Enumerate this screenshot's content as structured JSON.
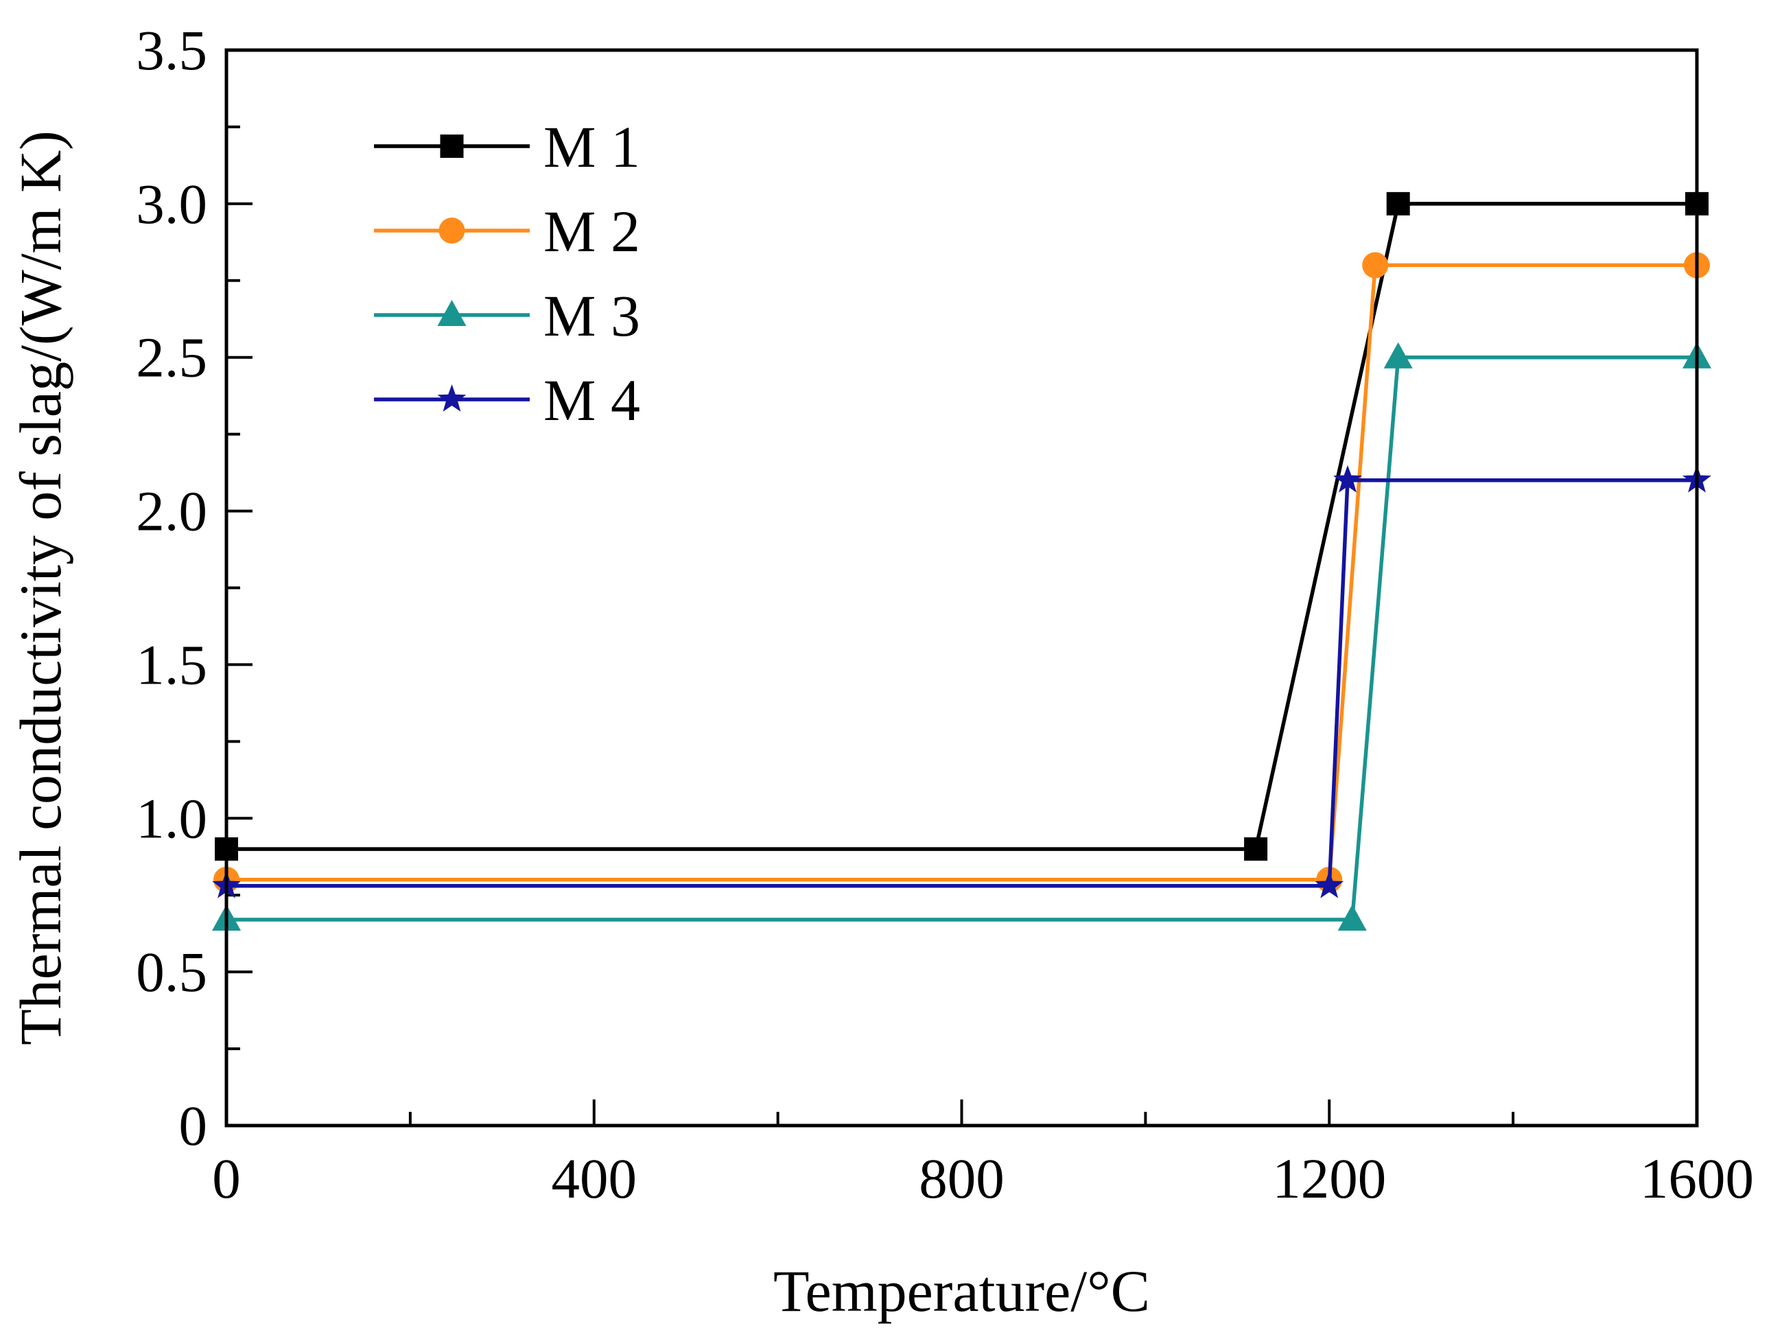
{
  "chart_data": {
    "type": "line",
    "title": "",
    "xlabel": "Temperature/°C",
    "ylabel": "Thermal conductivity of slag/(W/m K)",
    "xlim": [
      0,
      1600
    ],
    "ylim": [
      0,
      3.5
    ],
    "xticks": [
      0,
      400,
      800,
      1200,
      1600
    ],
    "xtick_labels": [
      "0",
      "400",
      "800",
      "1200",
      "1600"
    ],
    "x_minor_step": 200,
    "yticks": [
      0,
      0.5,
      1.0,
      1.5,
      2.0,
      2.5,
      3.0,
      3.5
    ],
    "ytick_labels": [
      "0",
      "0.5",
      "1.0",
      "1.5",
      "2.0",
      "2.5",
      "3.0",
      "3.5"
    ],
    "y_minor_step": 0.25,
    "grid": false,
    "legend_position": "top-left",
    "series": [
      {
        "name": "M 1",
        "color": "#000000",
        "marker": "square",
        "x": [
          0,
          1120,
          1275,
          1600
        ],
        "y": [
          0.9,
          0.9,
          3.0,
          3.0
        ]
      },
      {
        "name": "M 2",
        "color": "#ff8c1a",
        "marker": "circle",
        "x": [
          0,
          1200,
          1250,
          1600
        ],
        "y": [
          0.8,
          0.8,
          2.8,
          2.8
        ]
      },
      {
        "name": "M 3",
        "color": "#1a9490",
        "marker": "triangle",
        "x": [
          0,
          1225,
          1275,
          1600
        ],
        "y": [
          0.67,
          0.67,
          2.5,
          2.5
        ]
      },
      {
        "name": "M 4",
        "color": "#1414a0",
        "marker": "star",
        "x": [
          0,
          1200,
          1220,
          1600
        ],
        "y": [
          0.78,
          0.78,
          2.1,
          2.1
        ]
      }
    ]
  }
}
